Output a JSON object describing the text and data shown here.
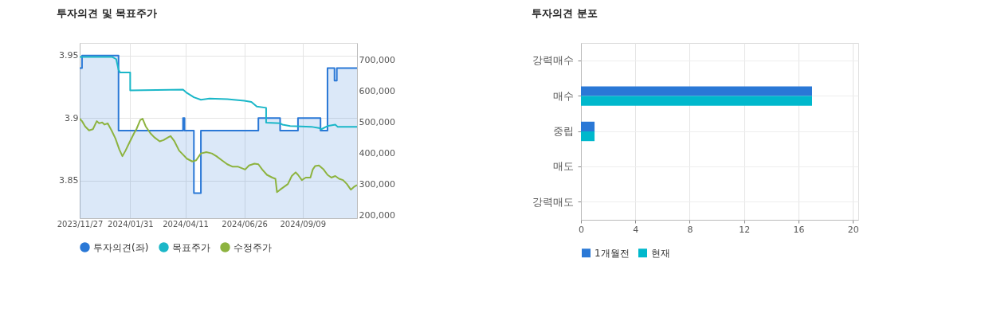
{
  "chart_data": [
    {
      "type": "line",
      "title": "투자의견 및 목표주가",
      "xlim": [
        "2023-11-27",
        "2024-11-18"
      ],
      "xticks": [
        {
          "value": "2023-11-27",
          "label": "2023/11/27"
        },
        {
          "value": "2024-01-31",
          "label": "2024/01/31"
        },
        {
          "value": "2024-04-11",
          "label": "2024/04/11"
        },
        {
          "value": "2024-06-26",
          "label": "2024/06/26"
        },
        {
          "value": "2024-09-09",
          "label": "2024/09/09"
        }
      ],
      "ylim": [
        3.82,
        3.96
      ],
      "yticks": [
        3.85,
        3.9,
        3.95
      ],
      "y2lim": [
        190000,
        755000
      ],
      "y2ticks": [
        {
          "value": 200000,
          "label": "200,000"
        },
        {
          "value": 300000,
          "label": "300,000"
        },
        {
          "value": 400000,
          "label": "400,000"
        },
        {
          "value": 500000,
          "label": "500,000"
        },
        {
          "value": 600000,
          "label": "600,000"
        },
        {
          "value": 700000,
          "label": "700,000"
        }
      ],
      "grid": true,
      "legend": "bottom",
      "series": [
        {
          "name": "투자의견(좌)",
          "type": "area",
          "color": "#2a78d6",
          "x": [
            "2023-11-27",
            "2023-11-30",
            "2023-11-30",
            "2024-01-16",
            "2024-01-16",
            "2024-04-08",
            "2024-04-08",
            "2024-04-10",
            "2024-04-10",
            "2024-04-22",
            "2024-04-22",
            "2024-05-01",
            "2024-05-01",
            "2024-07-14",
            "2024-07-14",
            "2024-08-11",
            "2024-08-11",
            "2024-09-03",
            "2024-09-03",
            "2024-10-02",
            "2024-10-02",
            "2024-10-11",
            "2024-10-11",
            "2024-10-20",
            "2024-10-20",
            "2024-10-23",
            "2024-10-23",
            "2024-11-18"
          ],
          "values": [
            3.94,
            3.94,
            3.95,
            3.95,
            3.89,
            3.89,
            3.9,
            3.9,
            3.89,
            3.89,
            3.84,
            3.84,
            3.89,
            3.89,
            3.9,
            3.9,
            3.89,
            3.89,
            3.9,
            3.9,
            3.89,
            3.89,
            3.94,
            3.94,
            3.93,
            3.93,
            3.94,
            3.94
          ]
        },
        {
          "name": "목표주가",
          "type": "line",
          "axis": "y2",
          "color": "#1bb7c8",
          "x": [
            "2023-11-27",
            "2024-01-08",
            "2024-01-13",
            "2024-01-16",
            "2024-01-18",
            "2024-01-31",
            "2024-01-31",
            "2024-04-08",
            "2024-04-13",
            "2024-04-22",
            "2024-05-01",
            "2024-05-12",
            "2024-06-04",
            "2024-06-26",
            "2024-07-05",
            "2024-07-12",
            "2024-07-24",
            "2024-07-24",
            "2024-08-11",
            "2024-08-14",
            "2024-08-24",
            "2024-09-20",
            "2024-09-30",
            "2024-10-03",
            "2024-10-11",
            "2024-10-21",
            "2024-10-24",
            "2024-11-18"
          ],
          "values": [
            710000,
            710000,
            703000,
            669000,
            660000,
            660000,
            602000,
            605000,
            594000,
            580000,
            572000,
            576000,
            574000,
            569000,
            565000,
            550000,
            546000,
            498000,
            496000,
            492000,
            487000,
            485000,
            481000,
            477000,
            487000,
            492000,
            485000,
            485000
          ]
        },
        {
          "name": "수정주가",
          "type": "line",
          "axis": "y2",
          "color": "#8db33f",
          "x": [
            "2023-11-27",
            "2023-11-30",
            "2023-12-04",
            "2023-12-09",
            "2023-12-14",
            "2023-12-19",
            "2023-12-22",
            "2023-12-26",
            "2023-12-29",
            "2024-01-02",
            "2024-01-07",
            "2024-01-12",
            "2024-01-17",
            "2024-01-21",
            "2024-01-25",
            "2024-01-30",
            "2024-02-05",
            "2024-02-08",
            "2024-02-13",
            "2024-02-16",
            "2024-02-20",
            "2024-02-26",
            "2024-03-02",
            "2024-03-09",
            "2024-03-14",
            "2024-03-20",
            "2024-03-23",
            "2024-03-28",
            "2024-04-03",
            "2024-04-08",
            "2024-04-13",
            "2024-04-20",
            "2024-04-25",
            "2024-05-01",
            "2024-05-08",
            "2024-05-15",
            "2024-05-21",
            "2024-05-28",
            "2024-06-04",
            "2024-06-11",
            "2024-06-18",
            "2024-06-27",
            "2024-07-02",
            "2024-07-09",
            "2024-07-14",
            "2024-07-19",
            "2024-07-25",
            "2024-08-01",
            "2024-08-05",
            "2024-08-07",
            "2024-08-11",
            "2024-08-16",
            "2024-08-21",
            "2024-08-26",
            "2024-08-31",
            "2024-09-03",
            "2024-09-08",
            "2024-09-13",
            "2024-09-19",
            "2024-09-22",
            "2024-09-25",
            "2024-09-30",
            "2024-10-06",
            "2024-10-11",
            "2024-10-16",
            "2024-10-21",
            "2024-10-26",
            "2024-10-31",
            "2024-11-05",
            "2024-11-10",
            "2024-11-14",
            "2024-11-18"
          ],
          "values": [
            511000,
            503000,
            486000,
            473000,
            477000,
            503000,
            496000,
            499000,
            492000,
            496000,
            473000,
            447000,
            412000,
            390000,
            408000,
            434000,
            464000,
            477000,
            507000,
            511000,
            486000,
            464000,
            451000,
            438000,
            442000,
            451000,
            455000,
            438000,
            408000,
            395000,
            382000,
            373000,
            377000,
            399000,
            403000,
            399000,
            390000,
            377000,
            364000,
            356000,
            356000,
            347000,
            360000,
            366000,
            364000,
            347000,
            330000,
            321000,
            317000,
            274000,
            282000,
            291000,
            300000,
            326000,
            338000,
            330000,
            313000,
            321000,
            321000,
            347000,
            358000,
            360000,
            347000,
            330000,
            321000,
            326000,
            317000,
            313000,
            300000,
            282000,
            291000,
            297000
          ]
        }
      ]
    },
    {
      "type": "bar",
      "title": "투자의견 분포",
      "orientation": "horizontal",
      "categories": [
        "강력매수",
        "매수",
        "중립",
        "매도",
        "강력매도"
      ],
      "xlim": [
        0,
        20.4
      ],
      "xticks": [
        0,
        4,
        8,
        12,
        16,
        20
      ],
      "grid": true,
      "legend": "bottom",
      "series": [
        {
          "name": "1개월전",
          "color": "#2a78d6",
          "values": [
            0,
            17,
            1,
            0,
            0
          ]
        },
        {
          "name": "현재",
          "color": "#00b8cc",
          "values": [
            0,
            17,
            1,
            0,
            0
          ]
        }
      ]
    }
  ]
}
